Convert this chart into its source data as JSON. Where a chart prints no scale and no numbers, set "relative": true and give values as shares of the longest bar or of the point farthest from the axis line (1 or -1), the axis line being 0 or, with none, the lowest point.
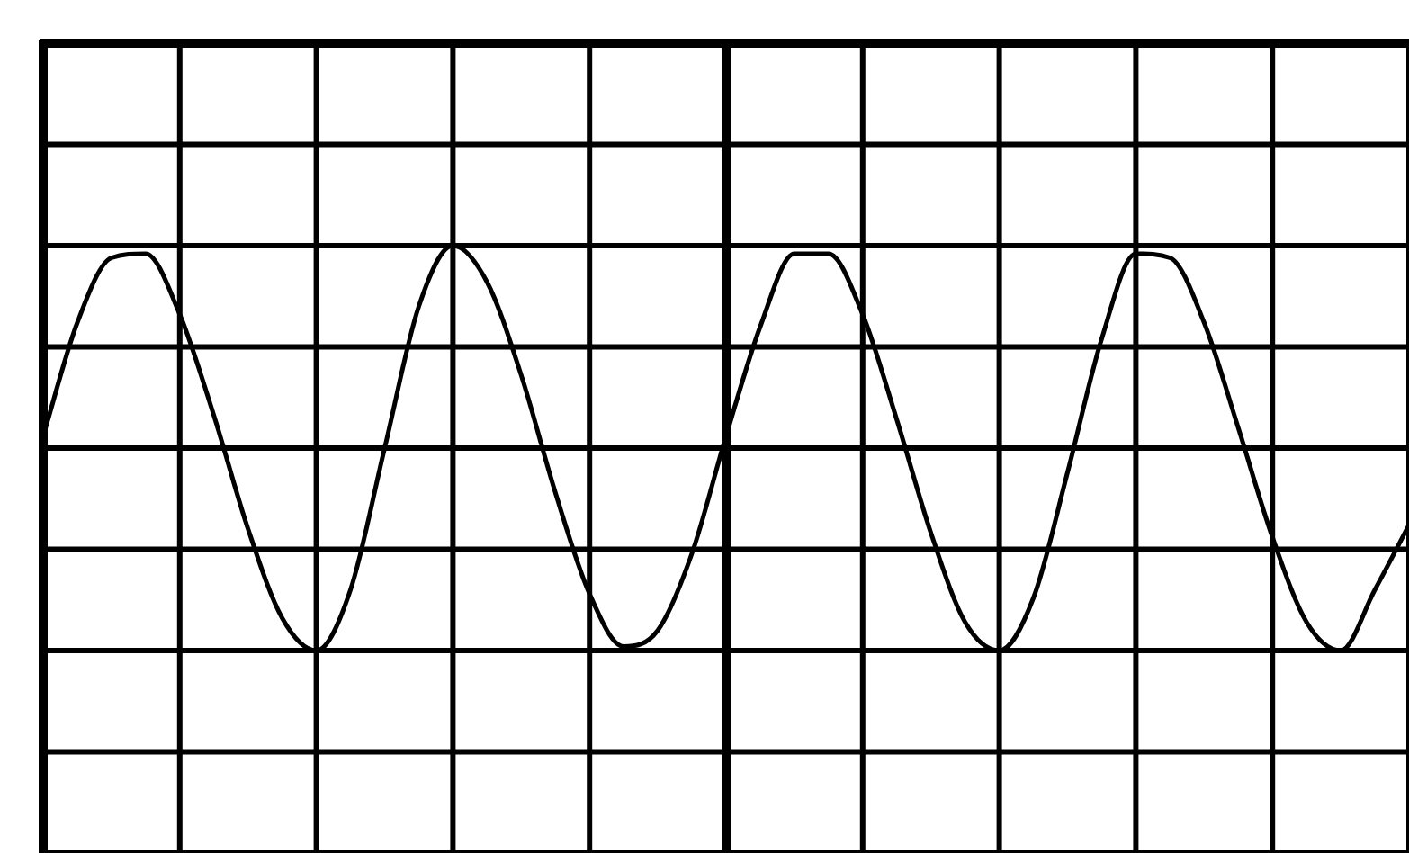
{
  "chart_data": {
    "type": "line",
    "relative": true,
    "grid": true,
    "legend": false,
    "marker": "none",
    "line_style": "solid",
    "categories": [
      null,
      null,
      null,
      null,
      null,
      null,
      null,
      null,
      null,
      null,
      null,
      null,
      null,
      null,
      null,
      null,
      null,
      null,
      null,
      null,
      null,
      null,
      null,
      null,
      null,
      null,
      null,
      null,
      null,
      null,
      null,
      null,
      null,
      null,
      null,
      null,
      null,
      null,
      null,
      null,
      null
    ],
    "series": [
      {
        "color": "#000000",
        "values": [
          0.53,
          0.81,
          0.97,
          0.98,
          0.83,
          0.58,
          0.3,
          0.08,
          0,
          0.15,
          0.5,
          0.85,
          1,
          0.91,
          0.68,
          0.39,
          0.14,
          0.01,
          0.05,
          0.24,
          0.53,
          0.8,
          0.98,
          0.98,
          0.83,
          0.57,
          0.29,
          0.07,
          0,
          0.13,
          0.44,
          0.77,
          0.98,
          0.97,
          0.81,
          0.55,
          0.28,
          0.07,
          0,
          0.15,
          0.31
        ]
      }
    ]
  }
}
